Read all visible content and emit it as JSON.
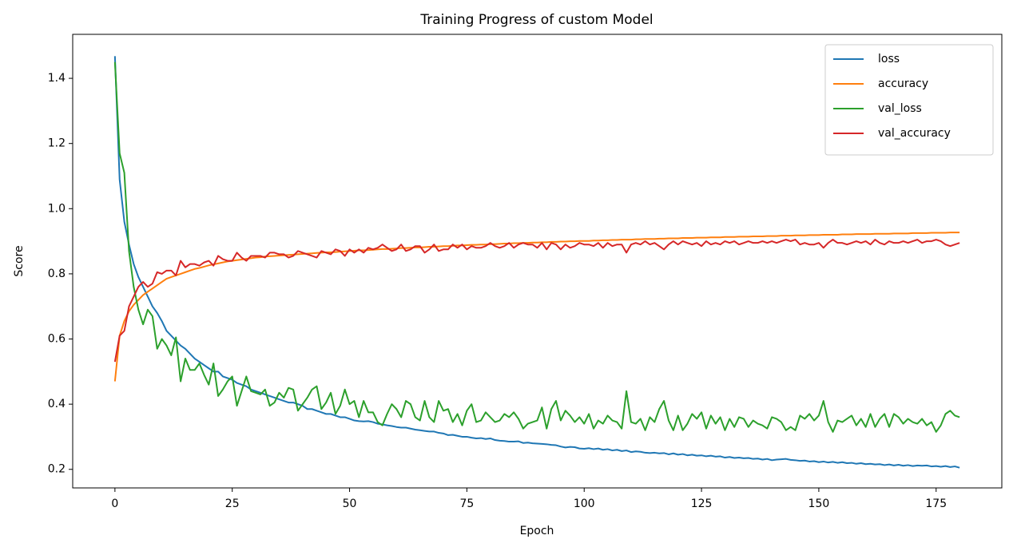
{
  "chart_data": {
    "type": "line",
    "title": "Training Progress of custom Model",
    "xlabel": "Epoch",
    "ylabel": "Score",
    "x": [
      0,
      1,
      2,
      3,
      4,
      5,
      6,
      7,
      8,
      9,
      10,
      11,
      12,
      13,
      14,
      15,
      16,
      17,
      18,
      19,
      20,
      21,
      22,
      23,
      24,
      25,
      26,
      27,
      28,
      29,
      30,
      31,
      32,
      33,
      34,
      35,
      36,
      37,
      38,
      39,
      40,
      41,
      42,
      43,
      44,
      45,
      46,
      47,
      48,
      49,
      50,
      51,
      52,
      53,
      54,
      55,
      56,
      57,
      58,
      59,
      60,
      61,
      62,
      63,
      64,
      65,
      66,
      67,
      68,
      69,
      70,
      71,
      72,
      73,
      74,
      75,
      76,
      77,
      78,
      79,
      80,
      81,
      82,
      83,
      84,
      85,
      86,
      87,
      88,
      89,
      90,
      91,
      92,
      93,
      94,
      95,
      96,
      97,
      98,
      99,
      100,
      101,
      102,
      103,
      104,
      105,
      106,
      107,
      108,
      109,
      110,
      111,
      112,
      113,
      114,
      115,
      116,
      117,
      118,
      119,
      120,
      121,
      122,
      123,
      124,
      125,
      126,
      127,
      128,
      129,
      130,
      131,
      132,
      133,
      134,
      135,
      136,
      137,
      138,
      139,
      140,
      141,
      142,
      143,
      144,
      145,
      146,
      147,
      148,
      149,
      150,
      151,
      152,
      153,
      154,
      155,
      156,
      157,
      158,
      159,
      160,
      161,
      162,
      163,
      164,
      165,
      166,
      167,
      168,
      169,
      170,
      171,
      172,
      173,
      174,
      175,
      176,
      177,
      178,
      179,
      180
    ],
    "series": [
      {
        "name": "loss",
        "color": "#1f77b4",
        "values": [
          1.468,
          1.09,
          0.96,
          0.89,
          0.83,
          0.79,
          0.76,
          0.73,
          0.7,
          0.68,
          0.655,
          0.625,
          0.61,
          0.595,
          0.58,
          0.57,
          0.555,
          0.54,
          0.53,
          0.52,
          0.51,
          0.5,
          0.5,
          0.485,
          0.48,
          0.475,
          0.465,
          0.46,
          0.455,
          0.445,
          0.44,
          0.435,
          0.43,
          0.425,
          0.42,
          0.415,
          0.41,
          0.405,
          0.405,
          0.4,
          0.395,
          0.385,
          0.385,
          0.38,
          0.375,
          0.37,
          0.37,
          0.365,
          0.36,
          0.36,
          0.355,
          0.35,
          0.348,
          0.347,
          0.348,
          0.345,
          0.34,
          0.338,
          0.335,
          0.333,
          0.33,
          0.328,
          0.328,
          0.325,
          0.322,
          0.32,
          0.318,
          0.316,
          0.316,
          0.312,
          0.31,
          0.305,
          0.306,
          0.303,
          0.3,
          0.3,
          0.297,
          0.295,
          0.296,
          0.293,
          0.295,
          0.29,
          0.288,
          0.287,
          0.285,
          0.285,
          0.286,
          0.281,
          0.282,
          0.28,
          0.279,
          0.278,
          0.277,
          0.275,
          0.274,
          0.27,
          0.267,
          0.269,
          0.268,
          0.264,
          0.263,
          0.265,
          0.262,
          0.264,
          0.26,
          0.262,
          0.258,
          0.26,
          0.256,
          0.258,
          0.253,
          0.255,
          0.254,
          0.251,
          0.25,
          0.251,
          0.249,
          0.25,
          0.246,
          0.249,
          0.245,
          0.247,
          0.243,
          0.245,
          0.242,
          0.243,
          0.24,
          0.242,
          0.239,
          0.24,
          0.236,
          0.238,
          0.235,
          0.236,
          0.234,
          0.235,
          0.232,
          0.233,
          0.23,
          0.232,
          0.228,
          0.23,
          0.231,
          0.232,
          0.229,
          0.228,
          0.226,
          0.227,
          0.224,
          0.225,
          0.222,
          0.224,
          0.221,
          0.223,
          0.22,
          0.222,
          0.219,
          0.22,
          0.217,
          0.219,
          0.216,
          0.217,
          0.215,
          0.216,
          0.213,
          0.215,
          0.212,
          0.214,
          0.211,
          0.213,
          0.21,
          0.212,
          0.211,
          0.212,
          0.209,
          0.21,
          0.208,
          0.21,
          0.207,
          0.209,
          0.205
        ]
      },
      {
        "name": "accuracy",
        "color": "#ff7f0e",
        "values": [
          0.47,
          0.61,
          0.655,
          0.685,
          0.705,
          0.72,
          0.735,
          0.745,
          0.755,
          0.765,
          0.775,
          0.785,
          0.79,
          0.795,
          0.8,
          0.805,
          0.81,
          0.815,
          0.818,
          0.822,
          0.826,
          0.829,
          0.832,
          0.835,
          0.838,
          0.84,
          0.842,
          0.844,
          0.846,
          0.848,
          0.85,
          0.851,
          0.853,
          0.854,
          0.855,
          0.856,
          0.857,
          0.858,
          0.859,
          0.86,
          0.861,
          0.862,
          0.863,
          0.864,
          0.865,
          0.866,
          0.866,
          0.867,
          0.868,
          0.869,
          0.87,
          0.871,
          0.872,
          0.872,
          0.873,
          0.874,
          0.875,
          0.876,
          0.876,
          0.877,
          0.878,
          0.879,
          0.879,
          0.88,
          0.881,
          0.881,
          0.882,
          0.883,
          0.883,
          0.884,
          0.885,
          0.885,
          0.886,
          0.887,
          0.887,
          0.888,
          0.889,
          0.889,
          0.89,
          0.89,
          0.891,
          0.891,
          0.892,
          0.893,
          0.893,
          0.894,
          0.894,
          0.895,
          0.895,
          0.896,
          0.896,
          0.897,
          0.897,
          0.898,
          0.898,
          0.899,
          0.899,
          0.9,
          0.9,
          0.901,
          0.901,
          0.901,
          0.902,
          0.902,
          0.903,
          0.903,
          0.904,
          0.904,
          0.905,
          0.905,
          0.905,
          0.906,
          0.906,
          0.907,
          0.907,
          0.907,
          0.908,
          0.908,
          0.909,
          0.909,
          0.909,
          0.91,
          0.91,
          0.91,
          0.911,
          0.911,
          0.911,
          0.912,
          0.912,
          0.912,
          0.913,
          0.913,
          0.913,
          0.914,
          0.914,
          0.914,
          0.915,
          0.915,
          0.915,
          0.916,
          0.916,
          0.916,
          0.917,
          0.917,
          0.917,
          0.918,
          0.918,
          0.918,
          0.919,
          0.919,
          0.919,
          0.92,
          0.92,
          0.92,
          0.92,
          0.921,
          0.921,
          0.921,
          0.922,
          0.922,
          0.922,
          0.922,
          0.923,
          0.923,
          0.923,
          0.923,
          0.924,
          0.924,
          0.924,
          0.924,
          0.925,
          0.925,
          0.925,
          0.925,
          0.926,
          0.926,
          0.926,
          0.926,
          0.927,
          0.927,
          0.927
        ]
      },
      {
        "name": "val_loss",
        "color": "#2ca02c",
        "values": [
          1.45,
          1.17,
          1.11,
          0.87,
          0.76,
          0.69,
          0.645,
          0.69,
          0.67,
          0.57,
          0.6,
          0.58,
          0.55,
          0.605,
          0.47,
          0.54,
          0.505,
          0.505,
          0.525,
          0.49,
          0.46,
          0.525,
          0.425,
          0.445,
          0.47,
          0.485,
          0.395,
          0.44,
          0.485,
          0.44,
          0.435,
          0.43,
          0.445,
          0.395,
          0.405,
          0.435,
          0.42,
          0.45,
          0.445,
          0.38,
          0.4,
          0.42,
          0.445,
          0.455,
          0.385,
          0.405,
          0.435,
          0.37,
          0.395,
          0.445,
          0.4,
          0.41,
          0.36,
          0.41,
          0.375,
          0.375,
          0.345,
          0.335,
          0.37,
          0.4,
          0.385,
          0.36,
          0.41,
          0.4,
          0.36,
          0.35,
          0.41,
          0.36,
          0.345,
          0.41,
          0.38,
          0.385,
          0.345,
          0.37,
          0.335,
          0.38,
          0.4,
          0.345,
          0.35,
          0.375,
          0.36,
          0.345,
          0.35,
          0.37,
          0.36,
          0.375,
          0.355,
          0.325,
          0.34,
          0.345,
          0.35,
          0.39,
          0.325,
          0.385,
          0.41,
          0.35,
          0.38,
          0.365,
          0.345,
          0.36,
          0.34,
          0.37,
          0.325,
          0.35,
          0.34,
          0.365,
          0.35,
          0.345,
          0.325,
          0.44,
          0.345,
          0.34,
          0.355,
          0.32,
          0.36,
          0.345,
          0.385,
          0.41,
          0.35,
          0.32,
          0.365,
          0.32,
          0.34,
          0.37,
          0.355,
          0.375,
          0.325,
          0.365,
          0.34,
          0.36,
          0.32,
          0.355,
          0.33,
          0.36,
          0.355,
          0.33,
          0.35,
          0.34,
          0.335,
          0.325,
          0.36,
          0.355,
          0.345,
          0.32,
          0.33,
          0.32,
          0.365,
          0.355,
          0.37,
          0.35,
          0.365,
          0.41,
          0.345,
          0.315,
          0.35,
          0.345,
          0.355,
          0.365,
          0.335,
          0.355,
          0.33,
          0.37,
          0.33,
          0.355,
          0.37,
          0.33,
          0.37,
          0.36,
          0.34,
          0.355,
          0.345,
          0.34,
          0.355,
          0.335,
          0.345,
          0.315,
          0.335,
          0.37,
          0.38,
          0.365,
          0.36
        ]
      },
      {
        "name": "val_accuracy",
        "color": "#d62728",
        "values": [
          0.53,
          0.61,
          0.625,
          0.7,
          0.73,
          0.76,
          0.775,
          0.76,
          0.77,
          0.805,
          0.8,
          0.81,
          0.81,
          0.795,
          0.84,
          0.82,
          0.83,
          0.83,
          0.825,
          0.835,
          0.84,
          0.825,
          0.855,
          0.845,
          0.84,
          0.84,
          0.865,
          0.85,
          0.84,
          0.855,
          0.855,
          0.855,
          0.85,
          0.865,
          0.865,
          0.86,
          0.86,
          0.85,
          0.855,
          0.87,
          0.865,
          0.86,
          0.855,
          0.85,
          0.87,
          0.865,
          0.86,
          0.875,
          0.87,
          0.855,
          0.875,
          0.865,
          0.875,
          0.865,
          0.88,
          0.875,
          0.88,
          0.89,
          0.88,
          0.87,
          0.875,
          0.89,
          0.87,
          0.875,
          0.885,
          0.885,
          0.865,
          0.875,
          0.89,
          0.87,
          0.875,
          0.875,
          0.89,
          0.88,
          0.89,
          0.875,
          0.885,
          0.88,
          0.88,
          0.885,
          0.895,
          0.885,
          0.88,
          0.885,
          0.895,
          0.88,
          0.89,
          0.895,
          0.89,
          0.89,
          0.88,
          0.895,
          0.875,
          0.895,
          0.89,
          0.875,
          0.89,
          0.88,
          0.885,
          0.895,
          0.89,
          0.89,
          0.885,
          0.895,
          0.88,
          0.895,
          0.885,
          0.89,
          0.89,
          0.865,
          0.89,
          0.895,
          0.89,
          0.9,
          0.89,
          0.895,
          0.885,
          0.875,
          0.89,
          0.9,
          0.89,
          0.9,
          0.895,
          0.89,
          0.895,
          0.885,
          0.9,
          0.89,
          0.895,
          0.89,
          0.9,
          0.895,
          0.9,
          0.89,
          0.895,
          0.9,
          0.895,
          0.895,
          0.9,
          0.895,
          0.9,
          0.895,
          0.9,
          0.905,
          0.9,
          0.905,
          0.89,
          0.895,
          0.89,
          0.89,
          0.895,
          0.88,
          0.895,
          0.905,
          0.895,
          0.895,
          0.89,
          0.895,
          0.9,
          0.895,
          0.9,
          0.89,
          0.905,
          0.895,
          0.89,
          0.9,
          0.895,
          0.895,
          0.9,
          0.895,
          0.9,
          0.905,
          0.895,
          0.9,
          0.9,
          0.905,
          0.9,
          0.89,
          0.885,
          0.89,
          0.895
        ]
      }
    ],
    "xlim": [
      -9,
      189
    ],
    "xticks": [
      0,
      25,
      50,
      75,
      100,
      125,
      150,
      175
    ],
    "ylim": [
      0.143,
      1.535
    ],
    "yticks": [
      0.2,
      0.4,
      0.6,
      0.8,
      {
        "value": 1,
        "label": "1.0"
      },
      1.2,
      1.4
    ],
    "grid": false,
    "legend": "upper right"
  }
}
